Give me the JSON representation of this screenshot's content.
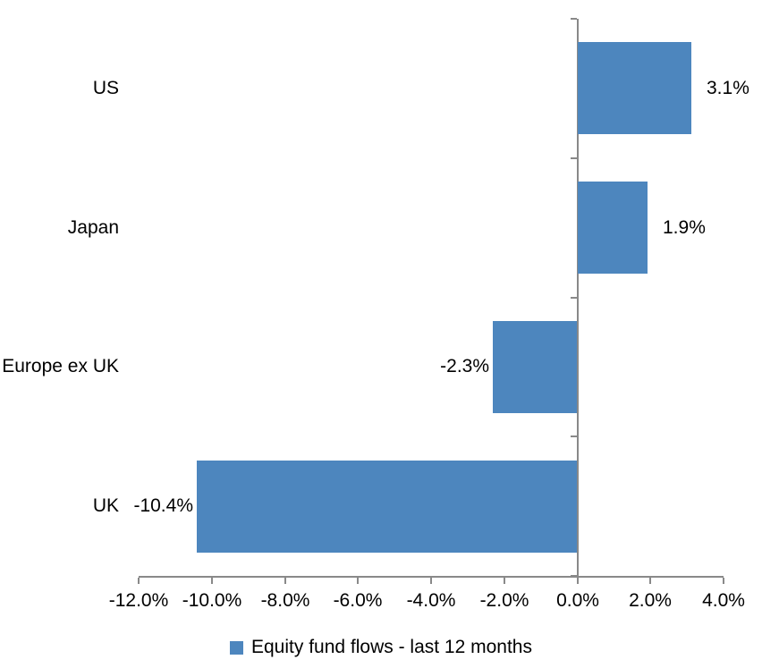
{
  "chart_data": {
    "type": "bar",
    "orientation": "horizontal",
    "title": "",
    "categories": [
      "US",
      "Japan",
      "Europe ex UK",
      "UK"
    ],
    "series": [
      {
        "name": "Equity fund flows - last 12 months",
        "values": [
          3.1,
          1.9,
          -2.3,
          -10.4
        ]
      }
    ],
    "data_labels": [
      "3.1%",
      "1.9%",
      "-2.3%",
      "-10.4%"
    ],
    "x_axis": {
      "tick_labels": [
        "-12.0%",
        "-10.0%",
        "-8.0%",
        "-6.0%",
        "-4.0%",
        "-2.0%",
        "0.0%",
        "2.0%",
        "4.0%"
      ],
      "tick_values": [
        -12,
        -10,
        -8,
        -6,
        -4,
        -2,
        0,
        2,
        4
      ],
      "min": -12,
      "max": 4,
      "unit": "%"
    },
    "y_axis": {
      "categories": [
        "US",
        "Japan",
        "Europe ex UK",
        "UK"
      ]
    },
    "legend": {
      "position": "bottom",
      "entries": [
        "Equity fund flows - last 12 months"
      ]
    },
    "colors": {
      "bar": "#4D86BE",
      "axis": "#898989",
      "text": "#000000"
    },
    "grid": false
  }
}
